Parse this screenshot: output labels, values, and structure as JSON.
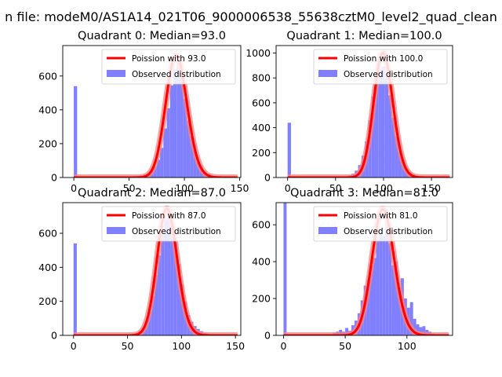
{
  "figure": {
    "suptitle": "n file: modeM0/AS1A14_021T06_9000006538_55638cztM0_level2_quad_clean"
  },
  "colors": {
    "bar": "#7f7fff",
    "fit_line": "#ff0000",
    "fit_halo": "#ff8080",
    "axes": "#000000",
    "legend_border": "#cccccc"
  },
  "chart_data": [
    {
      "type": "bar",
      "title": "Quadrant 0: Median=93.0",
      "xlim": [
        -10,
        151
      ],
      "ylim": [
        0,
        780
      ],
      "xticks": [
        0,
        50,
        100,
        150
      ],
      "xtick_labels": [
        "0",
        "50",
        "100",
        "150"
      ],
      "yticks": [
        0,
        200,
        400,
        600
      ],
      "ytick_labels": [
        "0",
        "200",
        "400",
        "600"
      ],
      "bin_width": 3,
      "bins_x": [
        0,
        42,
        45,
        48,
        51,
        54,
        57,
        60,
        63,
        66,
        69,
        72,
        75,
        78,
        81,
        84,
        87,
        90,
        93,
        96,
        99,
        102,
        105,
        108,
        111,
        114,
        117,
        120,
        123,
        126,
        129,
        132,
        135,
        138,
        141
      ],
      "counts": [
        540,
        2,
        3,
        4,
        5,
        8,
        10,
        14,
        18,
        25,
        40,
        65,
        105,
        175,
        290,
        410,
        545,
        640,
        680,
        600,
        465,
        335,
        245,
        165,
        95,
        55,
        32,
        20,
        12,
        8,
        6,
        4,
        3,
        2,
        1
      ],
      "poisson_mean": 93.0,
      "poisson_peak": 720,
      "legend": [
        "Poission with 93.0",
        "Observed distribution"
      ]
    },
    {
      "type": "bar",
      "title": "Quadrant 1: Median=100.0",
      "xlim": [
        -12,
        172
      ],
      "ylim": [
        0,
        1060
      ],
      "xticks": [
        0,
        50,
        100,
        150
      ],
      "xtick_labels": [
        "0",
        "50",
        "100",
        "150"
      ],
      "yticks": [
        0,
        200,
        400,
        600,
        800,
        1000
      ],
      "ytick_labels": [
        "0",
        "200",
        "400",
        "600",
        "800",
        "1000"
      ],
      "bin_width": 3.5,
      "bins_x": [
        0,
        49,
        52.5,
        56,
        59.5,
        63,
        66.5,
        70,
        73.5,
        77,
        80.5,
        84,
        87.5,
        91,
        94.5,
        98,
        101.5,
        105,
        108.5,
        112,
        115.5,
        119,
        122.5,
        126,
        129.5,
        133,
        136.5,
        140,
        143.5,
        147,
        150.5,
        154
      ],
      "counts": [
        440,
        2,
        4,
        6,
        10,
        18,
        30,
        55,
        100,
        175,
        290,
        460,
        650,
        780,
        870,
        890,
        800,
        660,
        480,
        330,
        210,
        120,
        70,
        40,
        25,
        15,
        10,
        8,
        6,
        4,
        3,
        2
      ],
      "poisson_mean": 100.0,
      "poisson_peak": 1000,
      "legend": [
        "Poission with 100.0",
        "Observed distribution"
      ]
    },
    {
      "type": "bar",
      "title": "Quadrant 2: Median=87.0",
      "xlim": [
        -10,
        155
      ],
      "ylim": [
        0,
        780
      ],
      "xticks": [
        0,
        50,
        100,
        150
      ],
      "xtick_labels": [
        "0",
        "50",
        "100",
        "150"
      ],
      "yticks": [
        0,
        200,
        400,
        600
      ],
      "ytick_labels": [
        "0",
        "200",
        "400",
        "600"
      ],
      "bin_width": 3,
      "bins_x": [
        0,
        42,
        45,
        48,
        51,
        54,
        57,
        60,
        63,
        66,
        69,
        72,
        75,
        78,
        81,
        84,
        87,
        90,
        93,
        96,
        99,
        102,
        105,
        108,
        111,
        114,
        117,
        120,
        123,
        126,
        129,
        132,
        135,
        138
      ],
      "counts": [
        540,
        2,
        3,
        5,
        7,
        10,
        15,
        25,
        45,
        80,
        140,
        230,
        350,
        470,
        590,
        680,
        700,
        650,
        545,
        420,
        300,
        200,
        120,
        80,
        55,
        38,
        25,
        15,
        10,
        6,
        4,
        3,
        2,
        1
      ],
      "poisson_mean": 87.0,
      "poisson_peak": 745,
      "legend": [
        "Poission with 87.0",
        "Observed distribution"
      ]
    },
    {
      "type": "bar",
      "title": "Quadrant 3: Median=81.0",
      "xlim": [
        -6,
        137
      ],
      "ylim": [
        0,
        720
      ],
      "xticks": [
        0,
        50,
        100
      ],
      "xtick_labels": [
        "0",
        "50",
        "100"
      ],
      "yticks": [
        0,
        200,
        400,
        600
      ],
      "ytick_labels": [
        "0",
        "200",
        "400",
        "600"
      ],
      "bin_width": 2.5,
      "bins_x": [
        0,
        40,
        42.5,
        45,
        47.5,
        50,
        52.5,
        55,
        57.5,
        60,
        62.5,
        65,
        67.5,
        70,
        72.5,
        75,
        77.5,
        80,
        82.5,
        85,
        87.5,
        90,
        92.5,
        95,
        97.5,
        100,
        102.5,
        105,
        107.5,
        110,
        112.5,
        115,
        117.5,
        120,
        122.5
      ],
      "counts": [
        720,
        15,
        20,
        30,
        20,
        40,
        25,
        55,
        80,
        120,
        190,
        270,
        300,
        380,
        420,
        520,
        580,
        540,
        620,
        500,
        380,
        400,
        260,
        310,
        200,
        150,
        180,
        90,
        60,
        45,
        50,
        30,
        20,
        10,
        5
      ],
      "poisson_mean": 81.0,
      "poisson_peak": 685,
      "legend": [
        "Poission with 81.0",
        "Observed distribution"
      ]
    }
  ]
}
